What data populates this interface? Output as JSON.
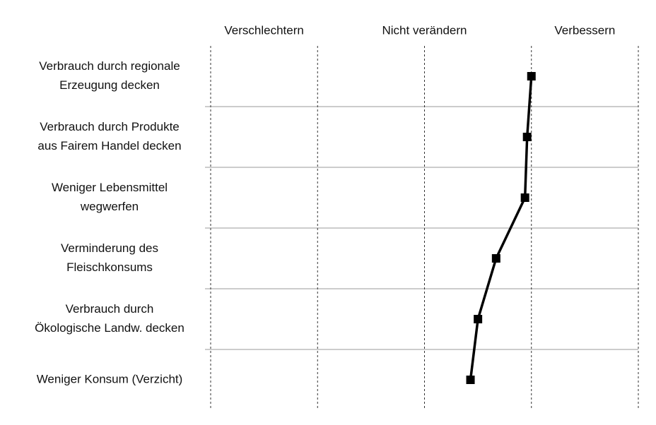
{
  "chart_data": {
    "type": "line",
    "categories": [
      [
        "Verbrauch durch regionale",
        "Erzeugung decken"
      ],
      [
        "Verbrauch durch Produkte",
        "aus Fairem Handel decken"
      ],
      [
        "Weniger Lebensmittel",
        "wegwerfen"
      ],
      [
        "Verminderung des",
        "Fleischkonsums"
      ],
      [
        "Verbrauch durch",
        "Ökologische Landw. decken"
      ],
      [
        "Weniger Konsum (Verzicht)"
      ]
    ],
    "values": [
      1.0,
      0.96,
      0.94,
      0.67,
      0.5,
      0.43
    ],
    "color": "#000000",
    "xlim": [
      -2,
      2
    ],
    "xticks": [
      {
        "value": -1.5,
        "label": "Verschlechtern"
      },
      {
        "value": 0,
        "label": "Nicht verändern"
      },
      {
        "value": 1.5,
        "label": "Verbessern"
      }
    ],
    "x_gridlines": [
      -2,
      -1,
      0,
      1,
      2
    ],
    "grid": true
  }
}
